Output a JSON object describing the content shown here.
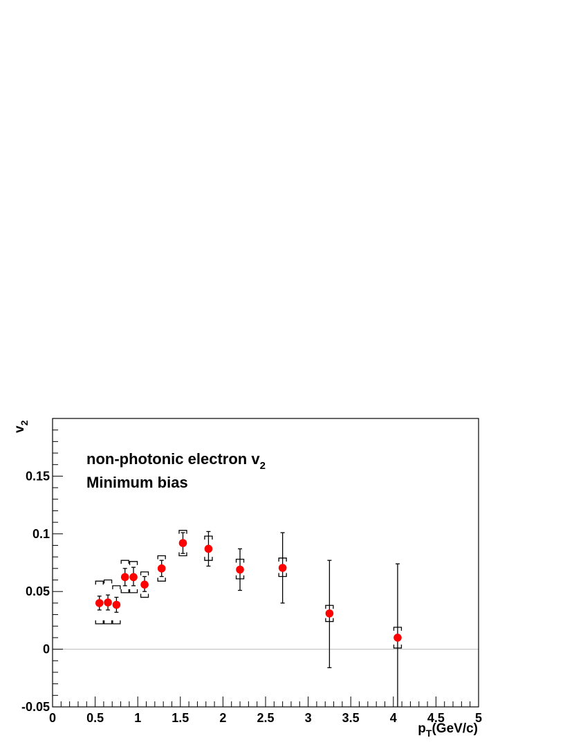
{
  "chart_data": {
    "type": "scatter",
    "ylabel": "v",
    "ylabel_sub": "2",
    "xlabel_main": "p",
    "xlabel_sub": "T",
    "xlabel_unit": "(GeV/c)",
    "annotation_line1_main": "non-photonic electron v",
    "annotation_line1_sub": "2",
    "annotation_line2": "Minimum bias",
    "xlim": [
      0,
      5
    ],
    "ylim": [
      -0.05,
      0.2
    ],
    "x_ticks": [
      0,
      0.5,
      1,
      1.5,
      2,
      2.5,
      3,
      3.5,
      4,
      4.5,
      5
    ],
    "x_tick_labels": [
      "0",
      "0.5",
      "1",
      "1.5",
      "2",
      "2.5",
      "3",
      "3.5",
      "4",
      "4.5",
      "5"
    ],
    "y_ticks": [
      -0.05,
      0,
      0.05,
      0.1,
      0.15
    ],
    "y_tick_labels": [
      "-0.05",
      "0",
      "0.05",
      "0.1",
      "0.15"
    ],
    "zero_line": true,
    "marker_color": "#ff0000",
    "points": [
      {
        "x": 0.55,
        "y": 0.04,
        "stat_lo": 0.034,
        "stat_hi": 0.046,
        "sys_lo": 0.022,
        "sys_hi": 0.059
      },
      {
        "x": 0.65,
        "y": 0.0405,
        "stat_lo": 0.034,
        "stat_hi": 0.047,
        "sys_lo": 0.022,
        "sys_hi": 0.06
      },
      {
        "x": 0.75,
        "y": 0.0385,
        "stat_lo": 0.032,
        "stat_hi": 0.045,
        "sys_lo": 0.022,
        "sys_hi": 0.055
      },
      {
        "x": 0.85,
        "y": 0.0625,
        "stat_lo": 0.055,
        "stat_hi": 0.07,
        "sys_lo": 0.049,
        "sys_hi": 0.077
      },
      {
        "x": 0.95,
        "y": 0.0625,
        "stat_lo": 0.055,
        "stat_hi": 0.071,
        "sys_lo": 0.049,
        "sys_hi": 0.076
      },
      {
        "x": 1.08,
        "y": 0.056,
        "stat_lo": 0.05,
        "stat_hi": 0.063,
        "sys_lo": 0.045,
        "sys_hi": 0.067
      },
      {
        "x": 1.28,
        "y": 0.07,
        "stat_lo": 0.063,
        "stat_hi": 0.077,
        "sys_lo": 0.059,
        "sys_hi": 0.081
      },
      {
        "x": 1.53,
        "y": 0.092,
        "stat_lo": 0.083,
        "stat_hi": 0.101,
        "sys_lo": 0.081,
        "sys_hi": 0.103
      },
      {
        "x": 1.83,
        "y": 0.087,
        "stat_lo": 0.072,
        "stat_hi": 0.102,
        "sys_lo": 0.077,
        "sys_hi": 0.098
      },
      {
        "x": 2.2,
        "y": 0.069,
        "stat_lo": 0.051,
        "stat_hi": 0.087,
        "sys_lo": 0.061,
        "sys_hi": 0.078
      },
      {
        "x": 2.7,
        "y": 0.0705,
        "stat_lo": 0.04,
        "stat_hi": 0.101,
        "sys_lo": 0.063,
        "sys_hi": 0.079
      },
      {
        "x": 3.25,
        "y": 0.031,
        "stat_lo": -0.016,
        "stat_hi": 0.077,
        "sys_lo": 0.024,
        "sys_hi": 0.038
      },
      {
        "x": 4.05,
        "y": 0.01,
        "stat_lo": -0.05,
        "stat_hi": 0.074,
        "sys_lo": 0.001,
        "sys_hi": 0.019
      }
    ]
  }
}
